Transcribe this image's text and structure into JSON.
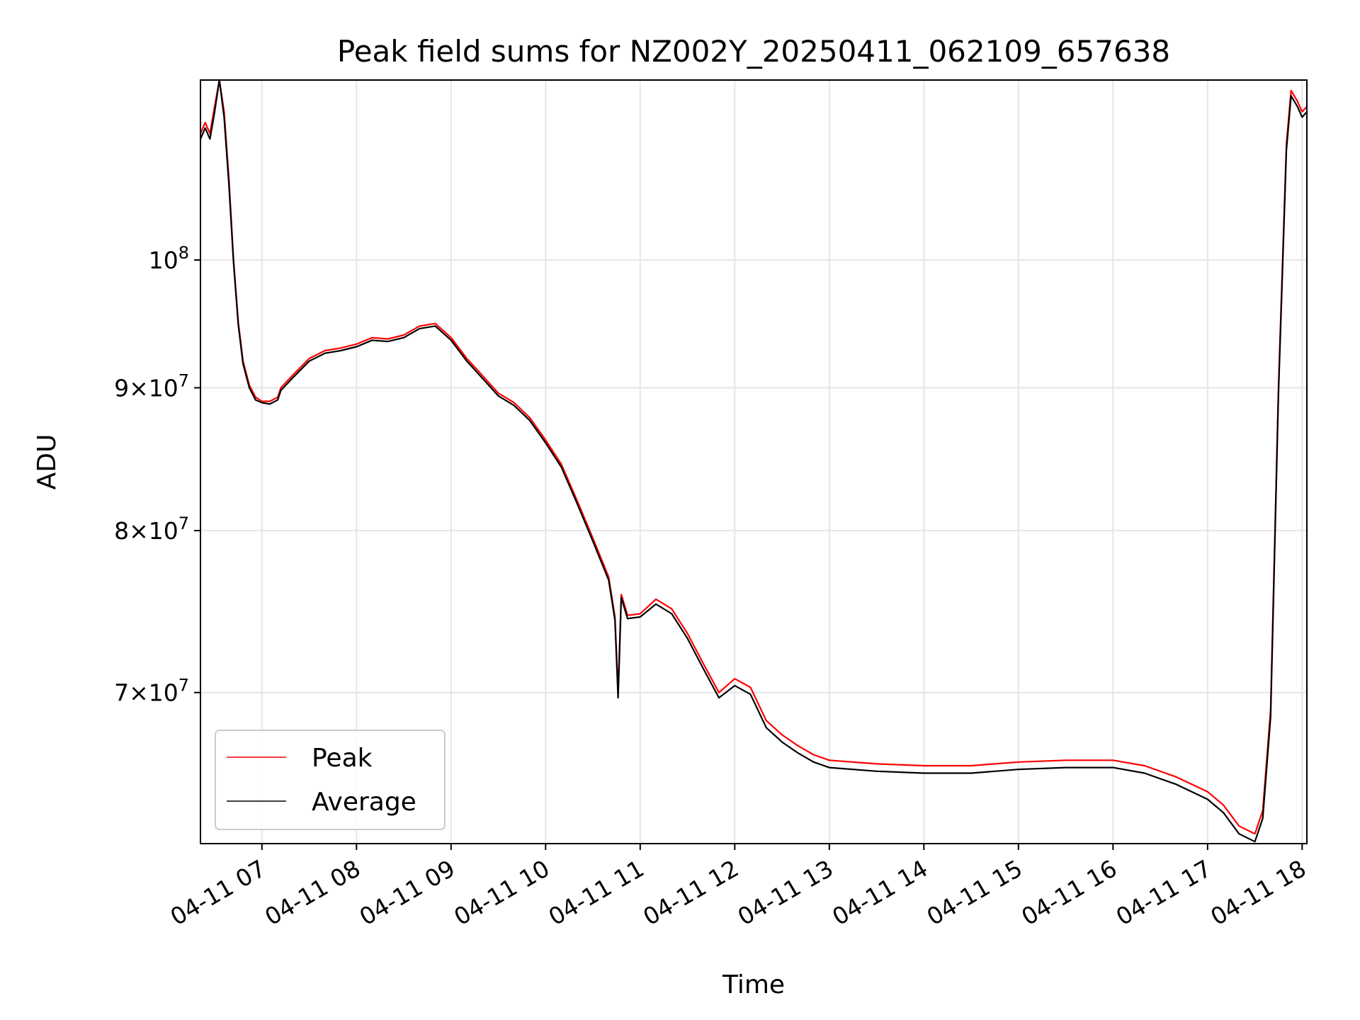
{
  "chart_data": {
    "type": "line",
    "title": "Peak field sums for NZ002Y_20250411_062109_657638",
    "xlabel": "Time",
    "ylabel": "ADU",
    "y_scale": "log",
    "grid": true,
    "legend_position": "lower-left",
    "xlim": [
      "2025-04-11 06:21",
      "2025-04-11 18:03"
    ],
    "ylim": [
      61800000,
      116000000
    ],
    "x_ticks": [
      {
        "t": "2025-04-11 07:00",
        "label": "04-11 07"
      },
      {
        "t": "2025-04-11 08:00",
        "label": "04-11 08"
      },
      {
        "t": "2025-04-11 09:00",
        "label": "04-11 09"
      },
      {
        "t": "2025-04-11 10:00",
        "label": "04-11 10"
      },
      {
        "t": "2025-04-11 11:00",
        "label": "04-11 11"
      },
      {
        "t": "2025-04-11 12:00",
        "label": "04-11 12"
      },
      {
        "t": "2025-04-11 13:00",
        "label": "04-11 13"
      },
      {
        "t": "2025-04-11 14:00",
        "label": "04-11 14"
      },
      {
        "t": "2025-04-11 15:00",
        "label": "04-11 15"
      },
      {
        "t": "2025-04-11 16:00",
        "label": "04-11 16"
      },
      {
        "t": "2025-04-11 17:00",
        "label": "04-11 17"
      },
      {
        "t": "2025-04-11 18:00",
        "label": "04-11 18"
      }
    ],
    "y_ticks": [
      {
        "value": 70000000,
        "mantissa": "7",
        "base": "10",
        "exp": "7"
      },
      {
        "value": 80000000,
        "mantissa": "8",
        "base": "10",
        "exp": "7"
      },
      {
        "value": 90000000,
        "mantissa": "9",
        "base": "10",
        "exp": "7"
      },
      {
        "value": 100000000,
        "mantissa": "",
        "base": "10",
        "exp": "8"
      }
    ],
    "series": [
      {
        "name": "Peak",
        "color": "#ff0000",
        "points": [
          [
            "2025-04-11 06:21",
            111000000
          ],
          [
            "2025-04-11 06:24",
            112000000
          ],
          [
            "2025-04-11 06:27",
            111000000
          ],
          [
            "2025-04-11 06:30",
            113500000
          ],
          [
            "2025-04-11 06:33",
            116000000
          ],
          [
            "2025-04-11 06:36",
            113000000
          ],
          [
            "2025-04-11 06:39",
            107000000
          ],
          [
            "2025-04-11 06:42",
            100000000
          ],
          [
            "2025-04-11 06:45",
            95000000
          ],
          [
            "2025-04-11 06:48",
            92000000
          ],
          [
            "2025-04-11 06:52",
            90200000
          ],
          [
            "2025-04-11 06:56",
            89300000
          ],
          [
            "2025-04-11 07:00",
            89000000
          ],
          [
            "2025-04-11 07:05",
            89000000
          ],
          [
            "2025-04-11 07:10",
            89300000
          ],
          [
            "2025-04-11 07:12",
            90000000
          ],
          [
            "2025-04-11 07:20",
            91000000
          ],
          [
            "2025-04-11 07:30",
            92200000
          ],
          [
            "2025-04-11 07:40",
            92800000
          ],
          [
            "2025-04-11 07:50",
            93000000
          ],
          [
            "2025-04-11 08:00",
            93300000
          ],
          [
            "2025-04-11 08:10",
            93800000
          ],
          [
            "2025-04-11 08:20",
            93700000
          ],
          [
            "2025-04-11 08:30",
            94000000
          ],
          [
            "2025-04-11 08:40",
            94700000
          ],
          [
            "2025-04-11 08:50",
            94900000
          ],
          [
            "2025-04-11 09:00",
            93800000
          ],
          [
            "2025-04-11 09:10",
            92200000
          ],
          [
            "2025-04-11 09:20",
            90900000
          ],
          [
            "2025-04-11 09:30",
            89600000
          ],
          [
            "2025-04-11 09:40",
            88900000
          ],
          [
            "2025-04-11 09:50",
            87800000
          ],
          [
            "2025-04-11 10:00",
            86200000
          ],
          [
            "2025-04-11 10:10",
            84500000
          ],
          [
            "2025-04-11 10:20",
            82000000
          ],
          [
            "2025-04-11 10:30",
            79500000
          ],
          [
            "2025-04-11 10:40",
            77000000
          ],
          [
            "2025-04-11 10:44",
            74500000
          ],
          [
            "2025-04-11 10:46",
            70000000
          ],
          [
            "2025-04-11 10:48",
            75900000
          ],
          [
            "2025-04-11 10:52",
            74600000
          ],
          [
            "2025-04-11 11:00",
            74700000
          ],
          [
            "2025-04-11 11:10",
            75600000
          ],
          [
            "2025-04-11 11:20",
            75000000
          ],
          [
            "2025-04-11 11:30",
            73500000
          ],
          [
            "2025-04-11 11:40",
            71700000
          ],
          [
            "2025-04-11 11:50",
            70000000
          ],
          [
            "2025-04-11 12:00",
            70800000
          ],
          [
            "2025-04-11 12:10",
            70300000
          ],
          [
            "2025-04-11 12:20",
            68400000
          ],
          [
            "2025-04-11 12:30",
            67600000
          ],
          [
            "2025-04-11 12:40",
            67000000
          ],
          [
            "2025-04-11 12:50",
            66500000
          ],
          [
            "2025-04-11 13:00",
            66200000
          ],
          [
            "2025-04-11 13:30",
            66000000
          ],
          [
            "2025-04-11 14:00",
            65900000
          ],
          [
            "2025-04-11 14:30",
            65900000
          ],
          [
            "2025-04-11 15:00",
            66100000
          ],
          [
            "2025-04-11 15:30",
            66200000
          ],
          [
            "2025-04-11 16:00",
            66200000
          ],
          [
            "2025-04-11 16:20",
            65900000
          ],
          [
            "2025-04-11 16:40",
            65300000
          ],
          [
            "2025-04-11 17:00",
            64500000
          ],
          [
            "2025-04-11 17:10",
            63800000
          ],
          [
            "2025-04-11 17:20",
            62700000
          ],
          [
            "2025-04-11 17:30",
            62300000
          ],
          [
            "2025-04-11 17:35",
            63500000
          ],
          [
            "2025-04-11 17:40",
            69000000
          ],
          [
            "2025-04-11 17:45",
            90000000
          ],
          [
            "2025-04-11 17:50",
            110000000
          ],
          [
            "2025-04-11 17:53",
            115000000
          ],
          [
            "2025-04-11 17:57",
            114000000
          ],
          [
            "2025-04-11 18:00",
            113000000
          ],
          [
            "2025-04-11 18:03",
            113500000
          ]
        ]
      },
      {
        "name": "Average",
        "color": "#000000",
        "points": [
          [
            "2025-04-11 06:21",
            110500000
          ],
          [
            "2025-04-11 06:24",
            111500000
          ],
          [
            "2025-04-11 06:27",
            110500000
          ],
          [
            "2025-04-11 06:30",
            113000000
          ],
          [
            "2025-04-11 06:33",
            116000000
          ],
          [
            "2025-04-11 06:36",
            112500000
          ],
          [
            "2025-04-11 06:39",
            106500000
          ],
          [
            "2025-04-11 06:42",
            99800000
          ],
          [
            "2025-04-11 06:45",
            94800000
          ],
          [
            "2025-04-11 06:48",
            91800000
          ],
          [
            "2025-04-11 06:52",
            90000000
          ],
          [
            "2025-04-11 06:56",
            89100000
          ],
          [
            "2025-04-11 07:00",
            88900000
          ],
          [
            "2025-04-11 07:05",
            88800000
          ],
          [
            "2025-04-11 07:10",
            89100000
          ],
          [
            "2025-04-11 07:12",
            89800000
          ],
          [
            "2025-04-11 07:20",
            90800000
          ],
          [
            "2025-04-11 07:30",
            92000000
          ],
          [
            "2025-04-11 07:40",
            92600000
          ],
          [
            "2025-04-11 07:50",
            92800000
          ],
          [
            "2025-04-11 08:00",
            93100000
          ],
          [
            "2025-04-11 08:10",
            93600000
          ],
          [
            "2025-04-11 08:20",
            93500000
          ],
          [
            "2025-04-11 08:30",
            93800000
          ],
          [
            "2025-04-11 08:40",
            94500000
          ],
          [
            "2025-04-11 08:50",
            94700000
          ],
          [
            "2025-04-11 09:00",
            93600000
          ],
          [
            "2025-04-11 09:10",
            92000000
          ],
          [
            "2025-04-11 09:20",
            90700000
          ],
          [
            "2025-04-11 09:30",
            89400000
          ],
          [
            "2025-04-11 09:40",
            88700000
          ],
          [
            "2025-04-11 09:50",
            87600000
          ],
          [
            "2025-04-11 10:00",
            86000000
          ],
          [
            "2025-04-11 10:10",
            84300000
          ],
          [
            "2025-04-11 10:20",
            81800000
          ],
          [
            "2025-04-11 10:30",
            79300000
          ],
          [
            "2025-04-11 10:40",
            76800000
          ],
          [
            "2025-04-11 10:44",
            74300000
          ],
          [
            "2025-04-11 10:46",
            69700000
          ],
          [
            "2025-04-11 10:48",
            75700000
          ],
          [
            "2025-04-11 10:52",
            74400000
          ],
          [
            "2025-04-11 11:00",
            74500000
          ],
          [
            "2025-04-11 11:10",
            75300000
          ],
          [
            "2025-04-11 11:20",
            74700000
          ],
          [
            "2025-04-11 11:30",
            73200000
          ],
          [
            "2025-04-11 11:40",
            71400000
          ],
          [
            "2025-04-11 11:50",
            69700000
          ],
          [
            "2025-04-11 12:00",
            70400000
          ],
          [
            "2025-04-11 12:10",
            69900000
          ],
          [
            "2025-04-11 12:20",
            68000000
          ],
          [
            "2025-04-11 12:30",
            67200000
          ],
          [
            "2025-04-11 12:40",
            66600000
          ],
          [
            "2025-04-11 12:50",
            66100000
          ],
          [
            "2025-04-11 13:00",
            65800000
          ],
          [
            "2025-04-11 13:30",
            65600000
          ],
          [
            "2025-04-11 14:00",
            65500000
          ],
          [
            "2025-04-11 14:30",
            65500000
          ],
          [
            "2025-04-11 15:00",
            65700000
          ],
          [
            "2025-04-11 15:30",
            65800000
          ],
          [
            "2025-04-11 16:00",
            65800000
          ],
          [
            "2025-04-11 16:20",
            65500000
          ],
          [
            "2025-04-11 16:40",
            64900000
          ],
          [
            "2025-04-11 17:00",
            64100000
          ],
          [
            "2025-04-11 17:10",
            63400000
          ],
          [
            "2025-04-11 17:20",
            62300000
          ],
          [
            "2025-04-11 17:30",
            61900000
          ],
          [
            "2025-04-11 17:35",
            63100000
          ],
          [
            "2025-04-11 17:40",
            68600000
          ],
          [
            "2025-04-11 17:45",
            89600000
          ],
          [
            "2025-04-11 17:50",
            109500000
          ],
          [
            "2025-04-11 17:53",
            114500000
          ],
          [
            "2025-04-11 17:57",
            113500000
          ],
          [
            "2025-04-11 18:00",
            112500000
          ],
          [
            "2025-04-11 18:03",
            113000000
          ]
        ]
      }
    ]
  }
}
